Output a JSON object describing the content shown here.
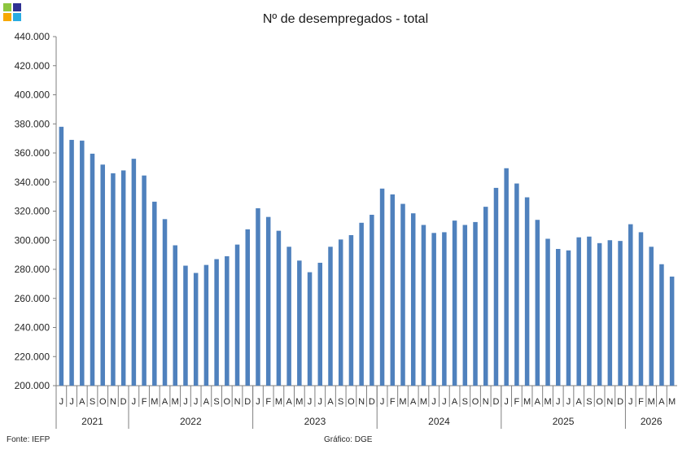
{
  "logo": {
    "colors": [
      "#8dc63f",
      "#2e3192",
      "#f7a800",
      "#29abe2"
    ]
  },
  "chart_data": {
    "type": "bar",
    "title": "Nº de desempregados - total",
    "xlabel": "",
    "ylabel": "",
    "ylim": [
      200000,
      440000
    ],
    "ytick_step": 20000,
    "ytick_labels": [
      "200.000",
      "220.000",
      "240.000",
      "260.000",
      "280.000",
      "300.000",
      "320.000",
      "340.000",
      "360.000",
      "380.000",
      "400.000",
      "420.000",
      "440.000"
    ],
    "grid": false,
    "legend": "none",
    "bar_color": "#4f81bd",
    "categories": [
      "J",
      "J",
      "A",
      "S",
      "O",
      "N",
      "D",
      "J",
      "F",
      "M",
      "A",
      "M",
      "J",
      "J",
      "A",
      "S",
      "O",
      "N",
      "D",
      "J",
      "F",
      "M",
      "A",
      "M",
      "J",
      "J",
      "A",
      "S",
      "O",
      "N",
      "D",
      "J",
      "F",
      "M",
      "A",
      "M",
      "J",
      "J",
      "A",
      "S",
      "O",
      "N",
      "D",
      "J",
      "F",
      "M",
      "A",
      "M",
      "J",
      "J",
      "A",
      "S",
      "O",
      "N",
      "D",
      "J",
      "F",
      "M",
      "A",
      "M"
    ],
    "year_groups": [
      {
        "label": "2021",
        "count": 7
      },
      {
        "label": "2022",
        "count": 12
      },
      {
        "label": "2023",
        "count": 12
      },
      {
        "label": "2024",
        "count": 12
      },
      {
        "label": "2025",
        "count": 12
      },
      {
        "label": "2026",
        "count": 5
      }
    ],
    "values": [
      378000,
      369000,
      368500,
      359500,
      352000,
      346000,
      348000,
      356000,
      344500,
      326500,
      314500,
      296500,
      282500,
      277500,
      283000,
      287000,
      289000,
      297000,
      307500,
      322000,
      316000,
      306500,
      295500,
      286000,
      278000,
      284500,
      295500,
      300500,
      303500,
      312000,
      317500,
      335500,
      331500,
      325000,
      318500,
      310500,
      305000,
      305500,
      313500,
      310500,
      312500,
      323000,
      336000,
      349500,
      339000,
      329500,
      314000,
      301000,
      294000,
      293000,
      302000,
      302500,
      298000,
      300000,
      299500,
      311000,
      305500,
      295500,
      283500,
      275000
    ]
  },
  "footer": {
    "source": "Fonte: IEFP",
    "credit": "Gráfico: DGE"
  }
}
